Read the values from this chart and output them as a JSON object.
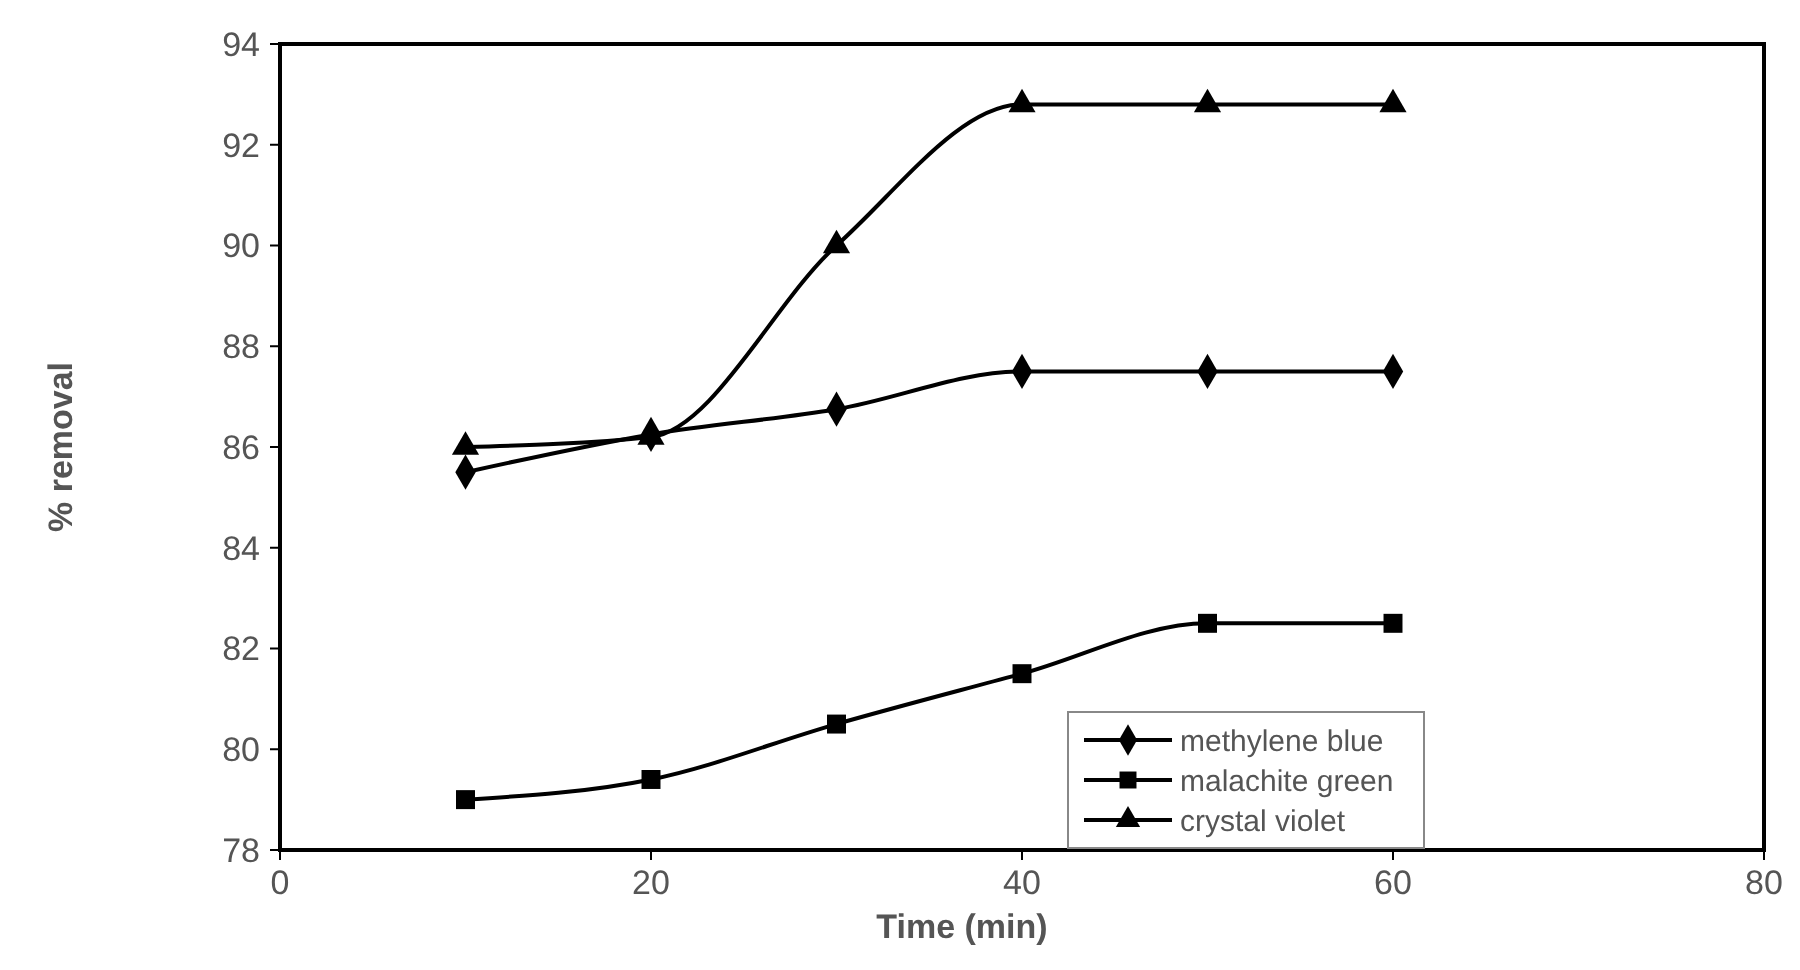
{
  "chart_data": {
    "type": "line",
    "xlabel": "Time (min)",
    "ylabel": "% removal",
    "x": [
      10,
      20,
      30,
      40,
      50,
      60
    ],
    "series": [
      {
        "name": "methylene blue",
        "color": "#000000",
        "marker": "diamond",
        "values": [
          85.5,
          86.25,
          86.75,
          87.5,
          87.5,
          87.5
        ]
      },
      {
        "name": "malachite green",
        "color": "#000000",
        "marker": "square",
        "values": [
          79,
          79.4,
          80.5,
          81.5,
          82.5,
          82.5
        ]
      },
      {
        "name": "crystal violet",
        "color": "#000000",
        "marker": "triangle",
        "values": [
          86,
          86.2,
          90,
          92.8,
          92.8,
          92.8
        ]
      }
    ],
    "xlim": [
      0,
      80
    ],
    "xticks": [
      0,
      20,
      40,
      60,
      80
    ],
    "ylim": [
      78,
      94
    ],
    "yticks": [
      78,
      80,
      82,
      84,
      86,
      88,
      90,
      92,
      94
    ],
    "grid": false,
    "legend": "bottom right",
    "line_style": "solid"
  }
}
